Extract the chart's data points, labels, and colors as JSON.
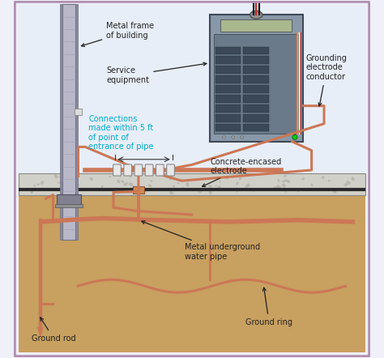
{
  "bg_color": "#f0f0f8",
  "border_color": "#b090b0",
  "ground_color": "#c8a060",
  "concrete_color": "#d0d0c8",
  "concrete_dark": "#909090",
  "copper_color": "#cc7755",
  "copper_light": "#ddaa88",
  "metal_frame_color": "#9090a0",
  "metal_frame_light": "#b8b8c8",
  "panel_color": "#909aaa",
  "panel_inner": "#7a8590",
  "sky_color": "#e8eef8",
  "labels": {
    "metal_frame": "Metal frame\nof building",
    "service_equipment": "Service\nequipment",
    "grounding_conductor": "Grounding\nelectrode\nconductor",
    "connections": "Connections\nmade within 5 ft\nof point of\nentrance of pipe",
    "concrete_electrode": "Concrete-encased\nelectrode",
    "water_pipe": "Metal underground\nwater pipe",
    "ground_rod": "Ground rod",
    "ground_ring": "Ground ring"
  },
  "label_color_connections": "#00aacc",
  "label_color_default": "#222222",
  "font_size": 7.0
}
